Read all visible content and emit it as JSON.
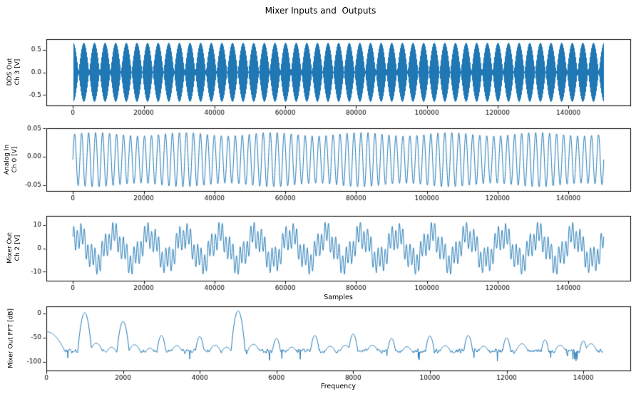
{
  "figure": {
    "title": "Mixer Inputs and  Outputs",
    "background": "#ffffff",
    "line_color": "#1f77b4",
    "text_color": "#000000"
  },
  "chart_data": [
    {
      "type": "line",
      "id": "dds-out-ch3",
      "ylabel_lines": [
        "DDS Out",
        "Ch 3 [V]"
      ],
      "xlabel": "",
      "x_ticks": [
        0,
        20000,
        40000,
        60000,
        80000,
        100000,
        120000,
        140000
      ],
      "x_tick_labels": [
        "0",
        "20000",
        "40000",
        "60000",
        "80000",
        "100000",
        "120000",
        "140000"
      ],
      "y_ticks": [
        0.5,
        0.0,
        -0.5
      ],
      "y_tick_labels": [
        "0.5",
        "0.0",
        "-0.5"
      ],
      "xlim": [
        -7500,
        157500
      ],
      "ylim": [
        -0.73,
        0.73
      ],
      "x_range": [
        0,
        150000
      ],
      "grid": false,
      "signal": {
        "kind": "beat",
        "amplitude": 0.325,
        "beat_cycles": 50,
        "description": "two summed sine tones forming ~50 amplitude beats over 150000 samples, peak about ±0.65 V"
      }
    },
    {
      "type": "line",
      "id": "analog-in-ch0",
      "ylabel_lines": [
        "Analog In",
        "Ch 0 [V]"
      ],
      "xlabel": "",
      "x_ticks": [
        0,
        20000,
        40000,
        60000,
        80000,
        100000,
        120000,
        140000
      ],
      "x_tick_labels": [
        "0",
        "20000",
        "40000",
        "60000",
        "80000",
        "100000",
        "120000",
        "140000"
      ],
      "y_ticks": [
        0.05,
        0.0,
        -0.05
      ],
      "y_tick_labels": [
        "0.05",
        "0.00",
        "-0.05"
      ],
      "xlim": [
        -7500,
        157500
      ],
      "ylim": [
        -0.0605,
        0.0505
      ],
      "x_range": [
        0,
        150000
      ],
      "grid": false,
      "signal": {
        "kind": "am_sine",
        "cycles": 76,
        "amplitude": 0.045,
        "offset": -0.005,
        "am_depth": 0.07,
        "am_cycles": 6,
        "description": "dense ~76-cycle sine near ±0.05 V, slightly offset below zero"
      }
    },
    {
      "type": "line",
      "id": "mixer-out-ch2",
      "ylabel_lines": [
        "Mixer Out",
        "Ch 2 [V]"
      ],
      "xlabel": "Samples",
      "x_ticks": [
        0,
        20000,
        40000,
        60000,
        80000,
        100000,
        120000,
        140000
      ],
      "x_tick_labels": [
        "0",
        "20000",
        "40000",
        "60000",
        "80000",
        "100000",
        "120000",
        "140000"
      ],
      "y_ticks": [
        10,
        0,
        -10
      ],
      "y_tick_labels": [
        "10",
        "0",
        "-10"
      ],
      "xlim": [
        -7500,
        157500
      ],
      "ylim": [
        -13.8,
        13.8
      ],
      "x_range": [
        0,
        150000
      ],
      "grid": false,
      "signal": {
        "kind": "multi_sine",
        "components": [
          {
            "cycles": 15,
            "amplitude": 5.5,
            "phase": 0.6
          },
          {
            "cycles": 150,
            "amplitude": 4.5,
            "phase": 0.0
          },
          {
            "cycles": 50,
            "amplitude": 2.2,
            "phase": 2.1
          }
        ],
        "description": "mixed multi-tone output, peaks about ±12 V"
      }
    },
    {
      "type": "line",
      "id": "mixer-out-fft",
      "ylabel_lines": [
        "Mixer Out FFT [dB]"
      ],
      "xlabel": "Frequency",
      "x_ticks": [
        0,
        2000,
        4000,
        6000,
        8000,
        10000,
        12000,
        14000
      ],
      "x_tick_labels": [
        "0",
        "2000",
        "4000",
        "6000",
        "8000",
        "10000",
        "12000",
        "14000"
      ],
      "y_ticks": [
        0,
        -50,
        -100
      ],
      "y_tick_labels": [
        "0",
        "-50",
        "-100"
      ],
      "xlim": [
        0,
        15225
      ],
      "ylim": [
        -118,
        14
      ],
      "x_range": [
        0,
        14500
      ],
      "grid": false,
      "signal": {
        "kind": "fft_spectrum",
        "noise_floor_db": -78,
        "noise_spread_db": 14,
        "peaks": [
          {
            "freq": 0,
            "db": -38,
            "width": 170
          },
          {
            "freq": 1000,
            "db": 1
          },
          {
            "freq": 2000,
            "db": -17
          },
          {
            "freq": 3000,
            "db": -46
          },
          {
            "freq": 4000,
            "db": -48
          },
          {
            "freq": 5000,
            "db": 5
          },
          {
            "freq": 6000,
            "db": -52
          },
          {
            "freq": 7000,
            "db": -46
          },
          {
            "freq": 8000,
            "db": -43
          },
          {
            "freq": 9000,
            "db": -52
          },
          {
            "freq": 10000,
            "db": -47
          },
          {
            "freq": 11000,
            "db": -46
          },
          {
            "freq": 12000,
            "db": -51
          },
          {
            "freq": 13000,
            "db": -55
          },
          {
            "freq": 14000,
            "db": -57
          }
        ],
        "minor_peaks": [
          {
            "freq": 1300,
            "db": -62
          },
          {
            "freq": 1700,
            "db": -70
          },
          {
            "freq": 2300,
            "db": -65
          },
          {
            "freq": 2700,
            "db": -72
          },
          {
            "freq": 3400,
            "db": -67
          },
          {
            "freq": 4400,
            "db": -66
          },
          {
            "freq": 4700,
            "db": -70
          },
          {
            "freq": 5400,
            "db": -64
          },
          {
            "freq": 6400,
            "db": -70
          },
          {
            "freq": 7400,
            "db": -68
          },
          {
            "freq": 7800,
            "db": -66
          },
          {
            "freq": 8500,
            "db": -66
          },
          {
            "freq": 9400,
            "db": -69
          },
          {
            "freq": 10400,
            "db": -67
          },
          {
            "freq": 11400,
            "db": -68
          },
          {
            "freq": 12400,
            "db": -63
          },
          {
            "freq": 13400,
            "db": -66
          },
          {
            "freq": 14200,
            "db": -63
          }
        ],
        "description": "harmonic peaks every 1000 Hz over a ~-78 dB noise floor; strongest peaks near 1000 Hz (~0 dB) and 5000 Hz (~+5 dB)"
      }
    }
  ]
}
